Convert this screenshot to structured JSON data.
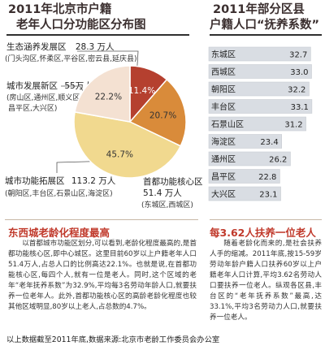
{
  "left": {
    "title_line1": "2011年北京市户籍",
    "title_line2": "老年人口分功能区分布图",
    "labels": {
      "eco_name": "生态涵养发展区",
      "eco_value": "28.3 万人",
      "eco_districts": "(门头沟区,怀柔区,平谷区,密云县,延庆县)",
      "dev_name": "城市发展新区",
      "dev_value": "55万人",
      "dev_districts_1": "(房山区,通州区,顺义区,",
      "dev_districts_2": "昌平区,大兴区)",
      "exp_name": "城市功能拓展区",
      "exp_value": "113.2 万人",
      "exp_districts": "(朝阳区,丰台区,石景山区,海淀区)",
      "core_name": "首都功能核心区",
      "core_value": "51.4 万人",
      "core_districts": "(东城区,西城区)"
    }
  },
  "chart_data": [
    {
      "type": "pie",
      "title": "2011年北京市户籍老年人口分功能区分布图",
      "slices": [
        {
          "name": "生态涵养发展区",
          "value": 11.4,
          "label": "11.4%",
          "color": "#b5402f"
        },
        {
          "name": "首都功能核心区",
          "value": 20.7,
          "label": "20.7%",
          "color": "#d98b3a"
        },
        {
          "name": "城市功能拓展区",
          "value": 45.7,
          "label": "45.7%",
          "color": "#f1d98f"
        },
        {
          "name": "城市发展新区",
          "value": 22.2,
          "label": "22.2%",
          "color": "#f4e1d2"
        }
      ]
    },
    {
      "type": "bar",
      "title": "2011年部分区县户籍人口“抚养系数”",
      "categories": [
        "东城区",
        "西城区",
        "朝阳区",
        "丰台区",
        "石景山区",
        "海淀区",
        "通州区",
        "昌平区",
        "大兴区"
      ],
      "values": [
        32.7,
        33.0,
        32.2,
        33.1,
        31.2,
        23.4,
        26.2,
        22.8,
        23.1
      ],
      "labels": [
        "32.7",
        "33.0",
        "32.2",
        "33.1",
        "31.2",
        "23.4",
        "26.2",
        "22.8",
        "23.1"
      ],
      "color": "#d9dde3",
      "xlim": [
        0,
        36
      ]
    }
  ],
  "right": {
    "title_line1": "2011年部分区县",
    "title_line2": "户籍人口“抚养系数”"
  },
  "section_left": {
    "heading": "东西城老龄化程度最高",
    "body": "以首都城市功能区划分,可以看到,老龄化程度最高的,是首都功能核心区,即中心城区。这里目前60岁以上户籍老年人口51.4万人,占总人口的比例高达22.1%。也就是说,在首都功能核心区,每四个人,就有一位是老人。同时,这个区域的老年“老年抚养系数”为32.9%,平均每3名劳动年龄人口,就要扶养一位老年人。此外,首都功能核心区的高龄老龄化程度也较其他区域明显,80岁以上老人,占总数的4.7%。"
  },
  "section_right": {
    "heading": "每3.62人扶养一位老人",
    "body": "随着老龄化而来的,是社会扶养人手的缩减。2011年底,按15-59岁劳动年龄户籍人口扶养60岁以上户籍老年人口计算,平均3.62名劳动人口要扶养一位老人。纵观各区县,丰台区的“老年抚养系数”最高,达33.1%,平均3名劳动力人口,就要扶养一位老人。"
  },
  "footer": "以上数据截至2011年底,数据来源:北京市老龄工作委员会办公室"
}
